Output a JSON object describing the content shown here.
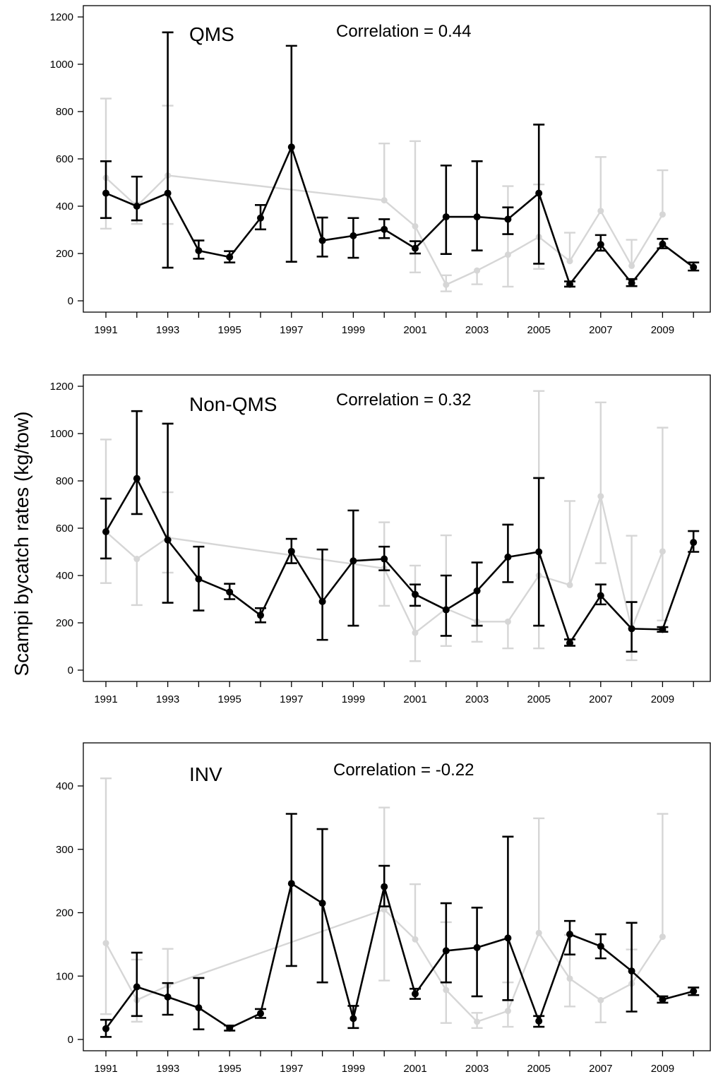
{
  "ylabel": "Scampi bycatch rates (kg/tow)",
  "chart_data": [
    {
      "type": "line",
      "title": "QMS",
      "annotation": "Correlation = 0.44",
      "ylim": [
        0,
        1200
      ],
      "yticks": [
        0,
        200,
        400,
        600,
        800,
        1000,
        1200
      ],
      "xlim": [
        1990.5,
        2010.5
      ],
      "xticks": [
        1991,
        1993,
        1995,
        1997,
        1999,
        2001,
        2003,
        2005,
        2007,
        2009
      ],
      "colors": {
        "primary": "#000000",
        "secondary": "#d6d6d6"
      },
      "series": [
        {
          "role": "primary",
          "x": [
            1991,
            1992,
            1993,
            1994,
            1995,
            1996,
            1997,
            1998,
            1999,
            2000,
            2001,
            2002,
            2003,
            2004,
            2005,
            2006,
            2007,
            2008,
            2009,
            2010
          ],
          "y": [
            455,
            400,
            455,
            212,
            185,
            350,
            650,
            255,
            275,
            302,
            222,
            355,
            355,
            345,
            455,
            70,
            238,
            75,
            240,
            142
          ],
          "lo": [
            350,
            340,
            140,
            178,
            162,
            302,
            165,
            187,
            182,
            265,
            200,
            198,
            213,
            282,
            157,
            60,
            212,
            62,
            222,
            128
          ],
          "hi": [
            590,
            525,
            1135,
            255,
            210,
            405,
            1078,
            352,
            350,
            345,
            252,
            572,
            590,
            395,
            745,
            82,
            278,
            92,
            262,
            162
          ]
        },
        {
          "role": "secondary",
          "x": [
            1991,
            1992,
            1993,
            2000,
            2001,
            2002,
            2003,
            2004,
            2005,
            2006,
            2007,
            2008,
            2009
          ],
          "y": [
            520,
            400,
            530,
            425,
            315,
            68,
            128,
            195,
            270,
            168,
            380,
            148,
            365
          ],
          "lo": [
            305,
            325,
            325,
            null,
            120,
            40,
            70,
            60,
            135,
            null,
            null,
            null,
            null
          ],
          "hi": [
            855,
            415,
            825,
            665,
            675,
            108,
            null,
            485,
            492,
            288,
            608,
            258,
            552
          ]
        }
      ]
    },
    {
      "type": "line",
      "title": "Non-QMS",
      "annotation": "Correlation = 0.32",
      "ylim": [
        0,
        1200
      ],
      "yticks": [
        0,
        200,
        400,
        600,
        800,
        1000,
        1200
      ],
      "xlim": [
        1990.5,
        2010.5
      ],
      "xticks": [
        1991,
        1993,
        1995,
        1997,
        1999,
        2001,
        2003,
        2005,
        2007,
        2009
      ],
      "colors": {
        "primary": "#000000",
        "secondary": "#d6d6d6"
      },
      "series": [
        {
          "role": "primary",
          "x": [
            1991,
            1992,
            1993,
            1994,
            1995,
            1996,
            1997,
            1998,
            1999,
            2000,
            2001,
            2002,
            2003,
            2004,
            2005,
            2006,
            2007,
            2008,
            2009,
            2010
          ],
          "y": [
            585,
            810,
            550,
            385,
            330,
            232,
            502,
            290,
            462,
            470,
            320,
            255,
            335,
            478,
            500,
            115,
            315,
            175,
            172,
            540
          ],
          "lo": [
            472,
            660,
            285,
            252,
            300,
            202,
            452,
            128,
            188,
            422,
            272,
            145,
            188,
            372,
            188,
            103,
            278,
            78,
            162,
            500
          ],
          "hi": [
            725,
            1095,
            1042,
            522,
            365,
            262,
            555,
            510,
            675,
            522,
            362,
            400,
            455,
            615,
            812,
            130,
            362,
            288,
            182,
            588
          ]
        },
        {
          "role": "secondary",
          "x": [
            1991,
            1992,
            1993,
            2000,
            2001,
            2002,
            2003,
            2004,
            2005,
            2006,
            2007,
            2008,
            2009
          ],
          "y": [
            585,
            470,
            560,
            430,
            158,
            260,
            205,
            205,
            400,
            360,
            735,
            175,
            502
          ],
          "lo": [
            368,
            275,
            412,
            272,
            38,
            102,
            120,
            92,
            92,
            null,
            452,
            42,
            210
          ],
          "hi": [
            975,
            null,
            752,
            625,
            442,
            570,
            null,
            null,
            1180,
            715,
            1132,
            568,
            1025
          ]
        }
      ]
    },
    {
      "type": "line",
      "title": "INV",
      "annotation": "Correlation = -0.22",
      "ylim": [
        0,
        450
      ],
      "yticks": [
        0,
        100,
        200,
        300,
        400
      ],
      "xlim": [
        1990.5,
        2010.5
      ],
      "xticks": [
        1991,
        1993,
        1995,
        1997,
        1999,
        2001,
        2003,
        2005,
        2007,
        2009
      ],
      "colors": {
        "primary": "#000000",
        "secondary": "#d6d6d6"
      },
      "series": [
        {
          "role": "primary",
          "x": [
            1991,
            1992,
            1993,
            1994,
            1995,
            1996,
            1997,
            1998,
            1999,
            2000,
            2001,
            2002,
            2003,
            2004,
            2005,
            2006,
            2007,
            2008,
            2009,
            2010
          ],
          "y": [
            17,
            83,
            67,
            50,
            18,
            41,
            246,
            215,
            33,
            241,
            72,
            140,
            145,
            160,
            29,
            166,
            147,
            108,
            63,
            76
          ],
          "lo": [
            4,
            37,
            39,
            16,
            14,
            34,
            116,
            90,
            18,
            210,
            64,
            90,
            68,
            62,
            20,
            134,
            128,
            44,
            58,
            70
          ],
          "hi": [
            31,
            137,
            89,
            97,
            22,
            48,
            356,
            332,
            53,
            274,
            80,
            215,
            208,
            320,
            37,
            187,
            166,
            184,
            68,
            82
          ]
        },
        {
          "role": "secondary",
          "x": [
            1991,
            1992,
            1993,
            2000,
            2001,
            2002,
            2003,
            2004,
            2005,
            2006,
            2007,
            2008,
            2009
          ],
          "y": [
            152,
            62,
            85,
            205,
            158,
            78,
            28,
            45,
            168,
            96,
            62,
            88,
            162
          ],
          "lo": [
            40,
            28,
            null,
            93,
            null,
            26,
            18,
            20,
            null,
            52,
            27,
            null,
            null
          ],
          "hi": [
            412,
            126,
            143,
            366,
            245,
            185,
            42,
            90,
            349,
            165,
            null,
            142,
            356
          ]
        }
      ]
    }
  ]
}
